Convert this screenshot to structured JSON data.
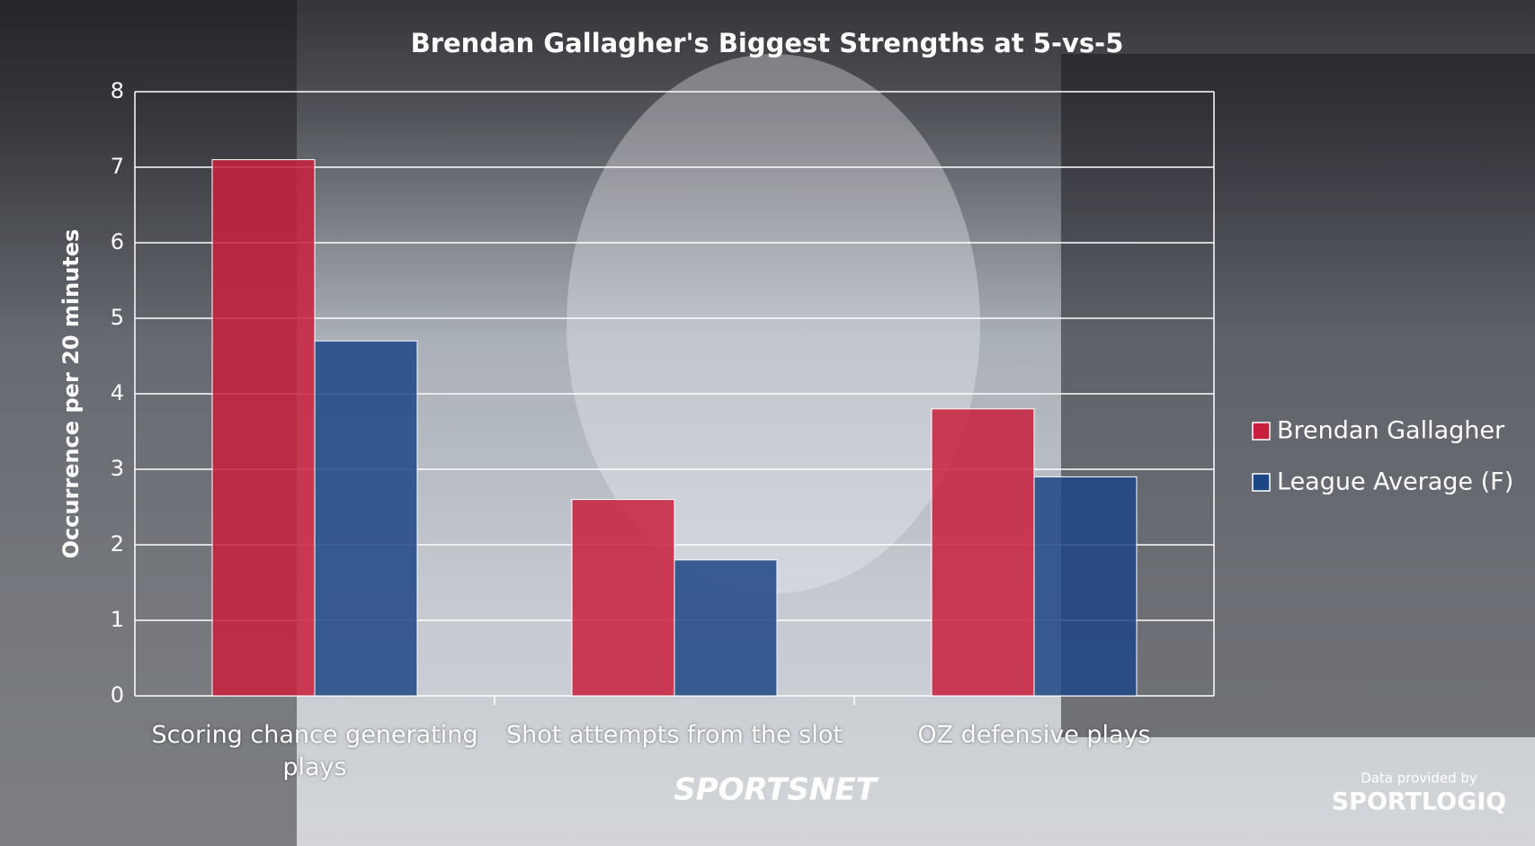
{
  "chart_data": {
    "type": "bar",
    "title": "Brendan Gallagher's Biggest Strengths at 5-vs-5",
    "y_label": "Occurrence per 20 minutes",
    "categories": [
      "Scoring chance generating plays",
      "Shot attempts from the slot",
      "OZ defensive plays"
    ],
    "series": [
      {
        "name": "Brendan Gallagher",
        "color": "#c8203c",
        "values": [
          7.1,
          2.6,
          3.8
        ]
      },
      {
        "name": "League Average (F)",
        "color": "#1d4585",
        "values": [
          4.7,
          1.8,
          2.9
        ]
      }
    ],
    "ylim": [
      0,
      8
    ],
    "yticks": [
      0,
      1,
      2,
      3,
      4,
      5,
      6,
      7,
      8
    ],
    "grid": true,
    "legend": "right",
    "credits": {
      "brand": "SPORTSNET",
      "provider_note": "Data provided by",
      "provider": "SPORTLOGIQ"
    }
  }
}
